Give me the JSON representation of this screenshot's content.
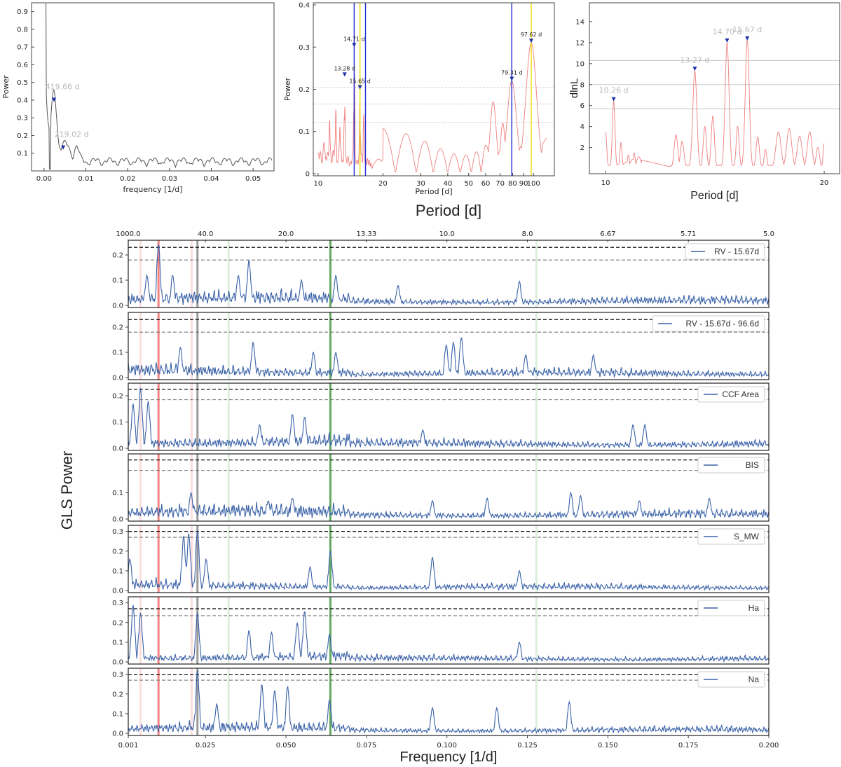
{
  "chart_data": [
    {
      "id": "freq-periodogram",
      "type": "line",
      "xlabel": "frequency [1/d]",
      "ylabel": "Power",
      "xlim": [
        -0.003,
        0.055
      ],
      "ylim": [
        0,
        0.95
      ],
      "xticks": [
        "0.00",
        "0.01",
        "0.02",
        "0.03",
        "0.04",
        "0.05"
      ],
      "yticks": [
        "0.1",
        "0.2",
        "0.3",
        "0.4",
        "0.5",
        "0.6",
        "0.7",
        "0.8",
        "0.9"
      ],
      "color": "#555555",
      "peaks": [
        {
          "label": "419.66 d",
          "x": 0.00238,
          "y": 0.39
        },
        {
          "label": "219.02 d",
          "x": 0.00457,
          "y": 0.12
        }
      ],
      "marker_color": "#1f2fa8",
      "label_color": "#b9b9b9"
    },
    {
      "id": "period-periodogram",
      "type": "line",
      "xlabel": "Period [d]",
      "ylabel": "Power",
      "xscale": "log",
      "xlim": [
        9.5,
        125
      ],
      "ylim": [
        -0.005,
        0.405
      ],
      "xticks": [
        "10",
        "20",
        "30",
        "40",
        "50",
        "60",
        "70",
        "80",
        "90",
        "100"
      ],
      "yticks": [
        "0",
        "0.1",
        "0.2",
        "0.3",
        "0.4"
      ],
      "color": "#f08080",
      "thresholds": [
        0.122,
        0.165,
        0.205
      ],
      "vlines_blue": [
        14.71,
        16.6,
        79.31
      ],
      "vlines_yellow": [
        15.65,
        97.62
      ],
      "peaks": [
        {
          "label": "13.28 d",
          "x": 13.28,
          "y": 0.23
        },
        {
          "label": "14.71 d",
          "x": 14.71,
          "y": 0.3
        },
        {
          "label": "15.65 d",
          "x": 15.65,
          "y": 0.2
        },
        {
          "label": "79.31 d",
          "x": 79.31,
          "y": 0.22
        },
        {
          "label": "97.62 d",
          "x": 97.62,
          "y": 0.31
        }
      ],
      "marker_color": "#1f2fa8"
    },
    {
      "id": "dlnl-period",
      "type": "line",
      "xlabel": "Period [d]",
      "ylabel": "dlnL",
      "xscale": "log",
      "xlim": [
        9.5,
        21
      ],
      "ylim": [
        -0.5,
        15.8
      ],
      "xticks": [
        "10",
        "20"
      ],
      "yticks": [
        "2",
        "4",
        "6",
        "8",
        "10",
        "12",
        "14"
      ],
      "color": "#f08080",
      "thresholds": [
        5.7,
        8.0,
        10.3
      ],
      "peaks": [
        {
          "label": "10.26 d",
          "x": 10.26,
          "y": 6.4
        },
        {
          "label": "13.27 d",
          "x": 13.27,
          "y": 9.3
        },
        {
          "label": "14.70 d",
          "x": 14.7,
          "y": 12.0
        },
        {
          "label": "15.67 d",
          "x": 15.67,
          "y": 12.2
        }
      ],
      "marker_color": "#1f2fa8",
      "label_color": "#b9b9b9"
    },
    {
      "id": "gls-stack",
      "type": "line",
      "xlabel": "Frequency [1/d]",
      "ylabel": "GLS Power",
      "top_xlabel": "Period [d]",
      "xlim": [
        0.001,
        0.2
      ],
      "xticks": [
        "0.001",
        "0.025",
        "0.050",
        "0.075",
        "0.100",
        "0.125",
        "0.150",
        "0.175",
        "0.200"
      ],
      "xtick_values": [
        0.001,
        0.025,
        0.05,
        0.075,
        0.1,
        0.125,
        0.15,
        0.175,
        0.2
      ],
      "top_ticks": [
        "1000.0",
        "40.0",
        "20.0",
        "13.33",
        "10.0",
        "8.0",
        "6.67",
        "5.71",
        "5.0"
      ],
      "top_tick_values": [
        0.001,
        0.025,
        0.05,
        0.075,
        0.1,
        0.125,
        0.15,
        0.175,
        0.2
      ],
      "line_color": "#3a62a8",
      "vlines": [
        {
          "x": 0.0048,
          "color": "#f2a0a0",
          "opacity": 0.35,
          "width": 3
        },
        {
          "x": 0.0104,
          "color": "#f05050",
          "opacity": 0.7,
          "width": 3
        },
        {
          "x": 0.0207,
          "color": "#f2a0a0",
          "opacity": 0.35,
          "width": 3
        },
        {
          "x": 0.0225,
          "color": "#707070",
          "opacity": 0.7,
          "width": 3
        },
        {
          "x": 0.0322,
          "color": "#9fd09f",
          "opacity": 0.35,
          "width": 3
        },
        {
          "x": 0.0638,
          "color": "#2e8b2e",
          "opacity": 0.75,
          "width": 3
        },
        {
          "x": 0.1278,
          "color": "#9fd09f",
          "opacity": 0.35,
          "width": 3
        }
      ],
      "panels": [
        {
          "legend": "RV - 15.67d",
          "yticks": [
            "0.0",
            "0.1",
            "0.2"
          ],
          "ymax": 0.25,
          "thresholds": [
            0.23,
            0.18
          ],
          "peaks": [
            [
              0.0104,
              0.245
            ],
            [
              0.0385,
              0.18
            ],
            [
              0.0068,
              0.12
            ],
            [
              0.0148,
              0.12
            ],
            [
              0.0352,
              0.12
            ],
            [
              0.0548,
              0.1
            ],
            [
              0.0848,
              0.08
            ],
            [
              0.1225,
              0.095
            ],
            [
              0.0655,
              0.12
            ]
          ]
        },
        {
          "legend": "RV - 15.67d - 96.6d",
          "yticks": [
            "0.0",
            "0.1",
            "0.2"
          ],
          "ymax": 0.25,
          "thresholds": [
            0.23,
            0.18
          ],
          "peaks": [
            [
              0.102,
              0.14
            ],
            [
              0.1045,
              0.16
            ],
            [
              0.0998,
              0.13
            ],
            [
              0.0398,
              0.14
            ],
            [
              0.0172,
              0.12
            ],
            [
              0.0585,
              0.1
            ],
            [
              0.0655,
              0.1
            ],
            [
              0.1245,
              0.09
            ],
            [
              0.1455,
              0.09
            ]
          ]
        },
        {
          "legend": "CCF Area",
          "yticks": [
            "0.0",
            "0.1",
            "0.2"
          ],
          "ymax": 0.24,
          "thresholds": [
            0.225,
            0.185
          ],
          "peaks": [
            [
              0.0048,
              0.23
            ],
            [
              0.0025,
              0.17
            ],
            [
              0.0072,
              0.18
            ],
            [
              0.052,
              0.13
            ],
            [
              0.0558,
              0.12
            ],
            [
              0.0418,
              0.09
            ],
            [
              0.1578,
              0.09
            ],
            [
              0.1615,
              0.09
            ],
            [
              0.0925,
              0.07
            ]
          ]
        },
        {
          "legend": "BIS",
          "yticks": [
            "0.0",
            "0.1"
          ],
          "ymax": 0.24,
          "thresholds": [
            0.225,
            0.185
          ],
          "peaks": [
            [
              0.0205,
              0.1
            ],
            [
              0.1385,
              0.1
            ],
            [
              0.1415,
              0.09
            ],
            [
              0.1125,
              0.08
            ],
            [
              0.052,
              0.08
            ],
            [
              0.0445,
              0.07
            ],
            [
              0.0955,
              0.07
            ],
            [
              0.1598,
              0.07
            ],
            [
              0.1815,
              0.08
            ]
          ]
        },
        {
          "legend": "S_MW",
          "yticks": [
            "0.0",
            "0.1",
            "0.2",
            "0.3"
          ],
          "ymax": 0.32,
          "thresholds": [
            0.3,
            0.27
          ],
          "peaks": [
            [
              0.0225,
              0.305
            ],
            [
              0.0182,
              0.28
            ],
            [
              0.0198,
              0.29
            ],
            [
              0.0638,
              0.2
            ],
            [
              0.0955,
              0.17
            ],
            [
              0.0252,
              0.16
            ],
            [
              0.0015,
              0.16
            ],
            [
              0.0575,
              0.12
            ],
            [
              0.1225,
              0.1
            ]
          ]
        },
        {
          "legend": "Ha",
          "yticks": [
            "0.0",
            "0.1",
            "0.2",
            "0.3"
          ],
          "ymax": 0.32,
          "thresholds": [
            0.27,
            0.235
          ],
          "peaks": [
            [
              0.0025,
              0.29
            ],
            [
              0.0048,
              0.25
            ],
            [
              0.0225,
              0.25
            ],
            [
              0.0558,
              0.26
            ],
            [
              0.0535,
              0.2
            ],
            [
              0.0385,
              0.16
            ],
            [
              0.0455,
              0.15
            ],
            [
              0.0635,
              0.14
            ],
            [
              0.1225,
              0.1
            ]
          ]
        },
        {
          "legend": "Na",
          "yticks": [
            "0.0",
            "0.1",
            "0.2",
            "0.3"
          ],
          "ymax": 0.32,
          "thresholds": [
            0.3,
            0.27
          ],
          "peaks": [
            [
              0.0225,
              0.32
            ],
            [
              0.0425,
              0.25
            ],
            [
              0.0505,
              0.24
            ],
            [
              0.0465,
              0.22
            ],
            [
              0.0635,
              0.17
            ],
            [
              0.138,
              0.16
            ],
            [
              0.0955,
              0.13
            ],
            [
              0.0285,
              0.15
            ],
            [
              0.1155,
              0.13
            ]
          ]
        }
      ]
    }
  ]
}
